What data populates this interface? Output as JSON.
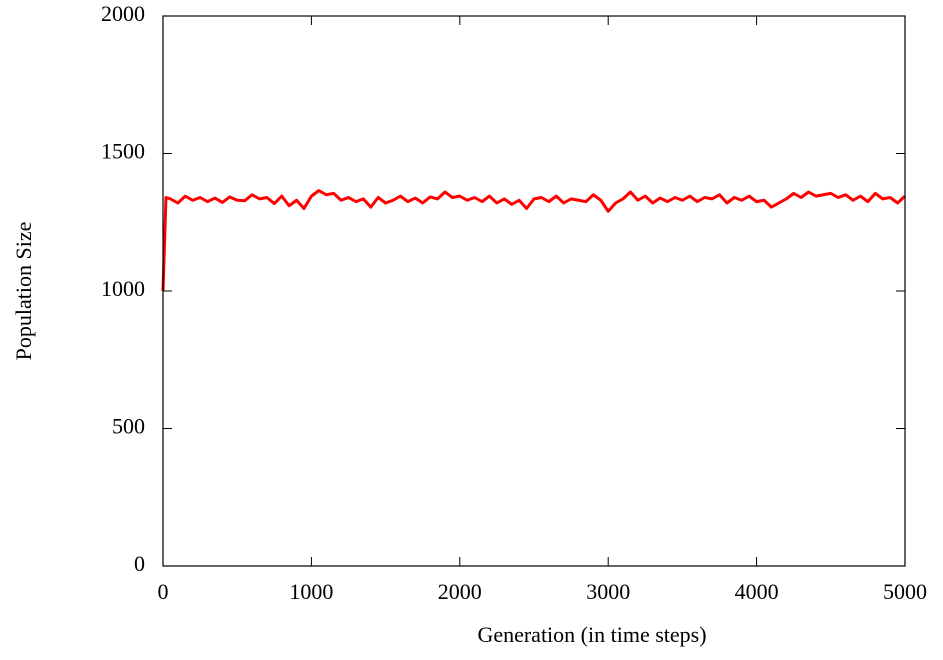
{
  "chart_data": {
    "type": "line",
    "xlabel": "Generation (in time steps)",
    "ylabel": "Population Size",
    "x": [
      0,
      20,
      50,
      100,
      150,
      200,
      250,
      300,
      350,
      400,
      450,
      500,
      550,
      600,
      650,
      700,
      750,
      800,
      850,
      900,
      950,
      1000,
      1050,
      1100,
      1150,
      1200,
      1250,
      1300,
      1350,
      1400,
      1450,
      1500,
      1550,
      1600,
      1650,
      1700,
      1750,
      1800,
      1850,
      1900,
      1950,
      2000,
      2050,
      2100,
      2150,
      2200,
      2250,
      2300,
      2350,
      2400,
      2450,
      2500,
      2550,
      2600,
      2650,
      2700,
      2750,
      2800,
      2850,
      2900,
      2950,
      3000,
      3050,
      3100,
      3150,
      3200,
      3250,
      3300,
      3350,
      3400,
      3450,
      3500,
      3550,
      3600,
      3650,
      3700,
      3750,
      3800,
      3850,
      3900,
      3950,
      4000,
      4050,
      4100,
      4150,
      4200,
      4250,
      4300,
      4350,
      4400,
      4450,
      4500,
      4550,
      4600,
      4650,
      4700,
      4750,
      4800,
      4850,
      4900,
      4950,
      5000
    ],
    "series": [
      {
        "color": "#ff0000",
        "values": [
          1000,
          1340,
          1335,
          1320,
          1345,
          1330,
          1340,
          1325,
          1338,
          1322,
          1342,
          1330,
          1328,
          1350,
          1335,
          1340,
          1318,
          1345,
          1310,
          1330,
          1300,
          1345,
          1365,
          1350,
          1355,
          1330,
          1340,
          1325,
          1335,
          1305,
          1340,
          1320,
          1330,
          1345,
          1325,
          1338,
          1320,
          1342,
          1335,
          1360,
          1340,
          1345,
          1330,
          1340,
          1325,
          1345,
          1320,
          1335,
          1315,
          1330,
          1300,
          1335,
          1340,
          1325,
          1345,
          1320,
          1335,
          1330,
          1325,
          1350,
          1330,
          1290,
          1320,
          1335,
          1360,
          1330,
          1345,
          1320,
          1338,
          1325,
          1340,
          1330,
          1345,
          1325,
          1340,
          1335,
          1350,
          1320,
          1340,
          1330,
          1345,
          1325,
          1330,
          1305,
          1320,
          1335,
          1355,
          1340,
          1360,
          1345,
          1350,
          1355,
          1340,
          1350,
          1330,
          1345,
          1325,
          1355,
          1335,
          1340,
          1320,
          1345
        ]
      }
    ],
    "xlim": [
      0,
      5000
    ],
    "xticks": [
      0,
      1000,
      2000,
      3000,
      4000,
      5000
    ],
    "ylim": [
      0,
      2000
    ],
    "yticks": [
      0,
      500,
      1000,
      1500,
      2000
    ]
  }
}
